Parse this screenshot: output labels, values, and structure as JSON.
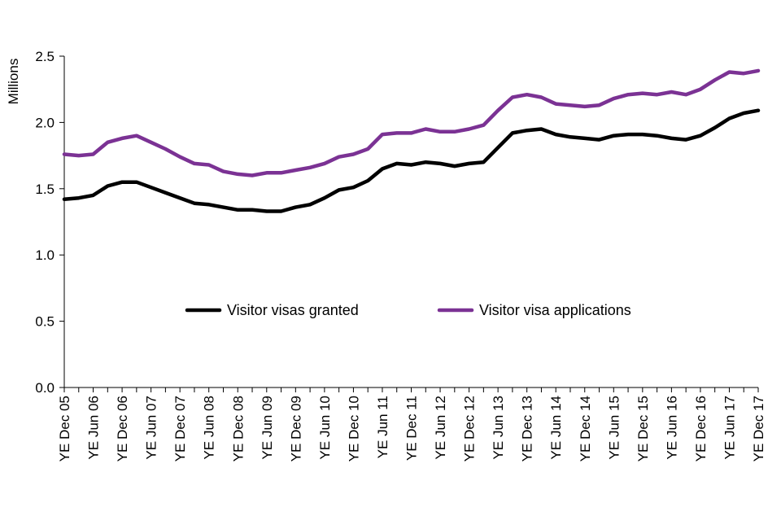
{
  "chart_data": {
    "type": "line",
    "title": "",
    "xlabel": "",
    "ylabel": "Millions",
    "ylim": [
      0,
      2.5
    ],
    "yticks": [
      "0.0",
      "0.5",
      "1.0",
      "1.5",
      "2.0",
      "2.5"
    ],
    "grid": false,
    "legend_position": "center",
    "x": [
      "YE Dec 05",
      "YE Mar 06",
      "YE Jun 06",
      "YE Sep 06",
      "YE Dec 06",
      "YE Mar 07",
      "YE Jun 07",
      "YE Sep 07",
      "YE Dec 07",
      "YE Mar 08",
      "YE Jun 08",
      "YE Sep 08",
      "YE Dec 08",
      "YE Mar 09",
      "YE Jun 09",
      "YE Sep 09",
      "YE Dec 09",
      "YE Mar 10",
      "YE Jun 10",
      "YE Sep 10",
      "YE Dec 10",
      "YE Mar 11",
      "YE Jun 11",
      "YE Sep 11",
      "YE Dec 11",
      "YE Mar 12",
      "YE Jun 12",
      "YE Sep 12",
      "YE Dec 12",
      "YE Mar 13",
      "YE Jun 13",
      "YE Sep 13",
      "YE Dec 13",
      "YE Mar 14",
      "YE Jun 14",
      "YE Sep 14",
      "YE Dec 14",
      "YE Mar 15",
      "YE Jun 15",
      "YE Sep 15",
      "YE Dec 15",
      "YE Mar 16",
      "YE Jun 16",
      "YE Sep 16",
      "YE Dec 16",
      "YE Mar 17",
      "YE Jun 17",
      "YE Sep 17",
      "YE Dec 17"
    ],
    "x_tick_labels": [
      "YE Dec 05",
      "YE Jun 06",
      "YE Dec 06",
      "YE Jun 07",
      "YE Dec 07",
      "YE Jun 08",
      "YE Dec 08",
      "YE Jun 09",
      "YE Dec 09",
      "YE Jun 10",
      "YE Dec 10",
      "YE Jun 11",
      "YE Dec 11",
      "YE Jun 12",
      "YE Dec 12",
      "YE Jun 13",
      "YE Dec 13",
      "YE Jun 14",
      "YE Dec 14",
      "YE Jun 15",
      "YE Dec 15",
      "YE Jun 16",
      "YE Dec 16",
      "YE Jun 17",
      "YE Dec 17"
    ],
    "series": [
      {
        "name": "Visitor visas granted",
        "color": "#000000",
        "values": [
          1.42,
          1.43,
          1.45,
          1.52,
          1.55,
          1.55,
          1.51,
          1.47,
          1.43,
          1.39,
          1.38,
          1.36,
          1.34,
          1.34,
          1.33,
          1.33,
          1.36,
          1.38,
          1.43,
          1.49,
          1.51,
          1.56,
          1.65,
          1.69,
          1.68,
          1.7,
          1.69,
          1.67,
          1.69,
          1.7,
          1.81,
          1.92,
          1.94,
          1.95,
          1.91,
          1.89,
          1.88,
          1.87,
          1.9,
          1.91,
          1.91,
          1.9,
          1.88,
          1.87,
          1.9,
          1.96,
          2.03,
          2.07,
          2.09
        ]
      },
      {
        "name": "Visitor visa applications",
        "color": "#7B3294",
        "values": [
          1.76,
          1.75,
          1.76,
          1.85,
          1.88,
          1.9,
          1.85,
          1.8,
          1.74,
          1.69,
          1.68,
          1.63,
          1.61,
          1.6,
          1.62,
          1.62,
          1.64,
          1.66,
          1.69,
          1.74,
          1.76,
          1.8,
          1.91,
          1.92,
          1.92,
          1.95,
          1.93,
          1.93,
          1.95,
          1.98,
          2.09,
          2.19,
          2.21,
          2.19,
          2.14,
          2.13,
          2.12,
          2.13,
          2.18,
          2.21,
          2.22,
          2.21,
          2.23,
          2.21,
          2.25,
          2.32,
          2.38,
          2.37,
          2.39
        ]
      }
    ]
  }
}
